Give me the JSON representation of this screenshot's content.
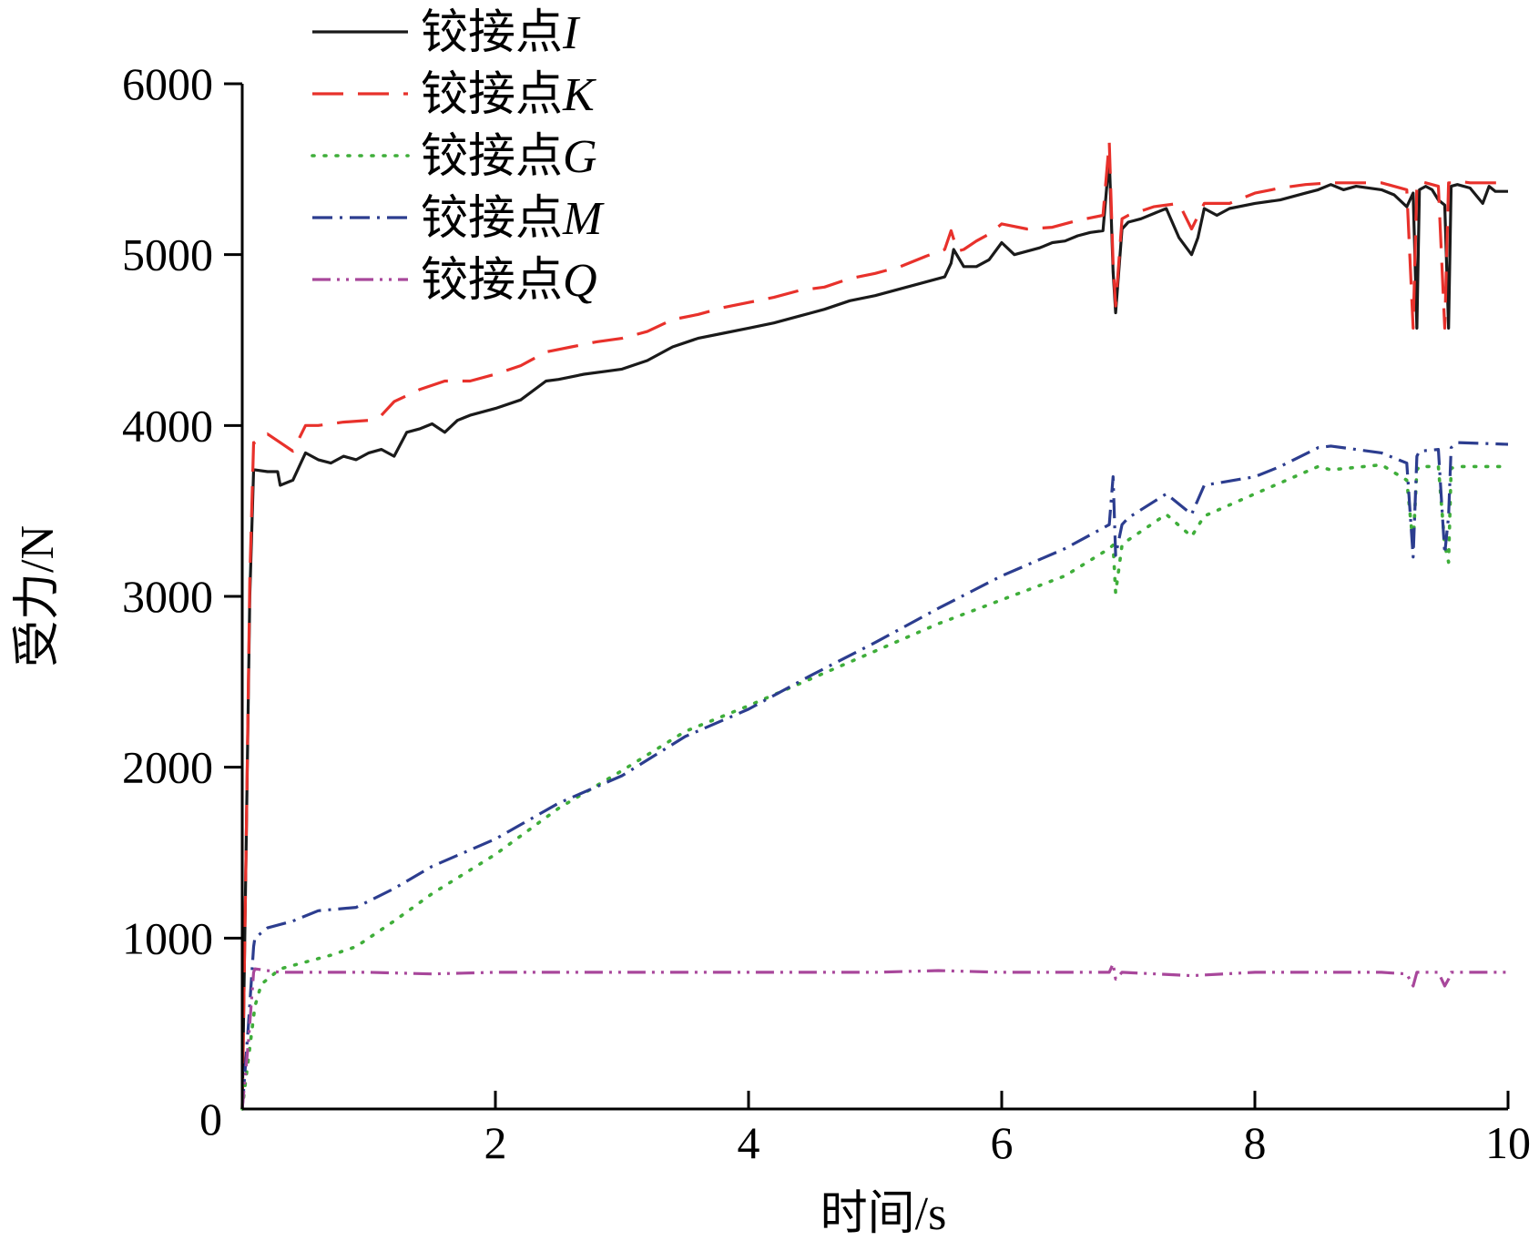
{
  "chart_data": {
    "type": "line",
    "xlabel": "时间/s",
    "ylabel": "受力/N",
    "xlim": [
      0,
      10
    ],
    "ylim": [
      0,
      6000
    ],
    "xticks": [
      2,
      4,
      6,
      8,
      10
    ],
    "yticks": [
      1000,
      2000,
      3000,
      4000,
      5000,
      6000
    ],
    "origin_label": "0",
    "grid": false,
    "legend_position": "top-left",
    "series": [
      {
        "name": "铰接点I",
        "name_prefix": "铰接点",
        "name_symbol": "I",
        "color": "#1a1a1a",
        "dash": "solid",
        "x": [
          0,
          0.03,
          0.06,
          0.09,
          0.1,
          0.2,
          0.28,
          0.3,
          0.4,
          0.5,
          0.6,
          0.7,
          0.8,
          0.9,
          1.0,
          1.1,
          1.2,
          1.3,
          1.4,
          1.5,
          1.6,
          1.7,
          1.8,
          2.0,
          2.2,
          2.4,
          2.5,
          2.7,
          2.9,
          3.0,
          3.2,
          3.4,
          3.6,
          3.8,
          4.0,
          4.2,
          4.4,
          4.6,
          4.8,
          5.0,
          5.2,
          5.4,
          5.55,
          5.6,
          5.62,
          5.7,
          5.8,
          5.9,
          6.0,
          6.1,
          6.2,
          6.3,
          6.4,
          6.5,
          6.6,
          6.7,
          6.8,
          6.85,
          6.88,
          6.9,
          6.95,
          7.0,
          7.1,
          7.2,
          7.3,
          7.4,
          7.5,
          7.55,
          7.6,
          7.7,
          7.8,
          8.0,
          8.2,
          8.4,
          8.5,
          8.6,
          8.7,
          8.8,
          9.0,
          9.1,
          9.2,
          9.25,
          9.28,
          9.3,
          9.35,
          9.4,
          9.45,
          9.5,
          9.53,
          9.55,
          9.6,
          9.7,
          9.8,
          9.85,
          9.9,
          10.0
        ],
        "y": [
          0,
          1500,
          3000,
          3740,
          3740,
          3730,
          3730,
          3650,
          3680,
          3840,
          3800,
          3780,
          3820,
          3800,
          3840,
          3860,
          3820,
          3960,
          3980,
          4010,
          3960,
          4030,
          4060,
          4100,
          4150,
          4260,
          4270,
          4300,
          4320,
          4330,
          4380,
          4460,
          4510,
          4540,
          4570,
          4600,
          4640,
          4680,
          4730,
          4760,
          4800,
          4840,
          4870,
          4950,
          5030,
          4930,
          4930,
          4970,
          5070,
          5000,
          5020,
          5040,
          5070,
          5080,
          5110,
          5130,
          5140,
          5570,
          4900,
          4660,
          5150,
          5190,
          5210,
          5240,
          5270,
          5100,
          5000,
          5100,
          5270,
          5230,
          5270,
          5300,
          5320,
          5360,
          5380,
          5410,
          5380,
          5400,
          5380,
          5350,
          5280,
          5360,
          4570,
          5380,
          5400,
          5380,
          5320,
          5290,
          4570,
          5400,
          5410,
          5390,
          5300,
          5400,
          5370,
          5370
        ]
      },
      {
        "name": "铰接点K",
        "name_prefix": "铰接点",
        "name_symbol": "K",
        "color": "#e8312b",
        "dash": "34,16",
        "x": [
          0,
          0.03,
          0.06,
          0.09,
          0.1,
          0.2,
          0.3,
          0.4,
          0.5,
          0.6,
          0.8,
          1.0,
          1.1,
          1.2,
          1.4,
          1.6,
          1.8,
          2.0,
          2.2,
          2.4,
          2.6,
          2.8,
          3.0,
          3.2,
          3.4,
          3.6,
          3.8,
          4.0,
          4.2,
          4.4,
          4.6,
          4.8,
          5.0,
          5.2,
          5.4,
          5.55,
          5.6,
          5.65,
          5.7,
          5.8,
          5.9,
          6.0,
          6.2,
          6.4,
          6.6,
          6.8,
          6.85,
          6.88,
          6.9,
          6.95,
          7.0,
          7.2,
          7.4,
          7.5,
          7.6,
          7.8,
          8.0,
          8.2,
          8.4,
          8.6,
          8.8,
          9.0,
          9.2,
          9.25,
          9.28,
          9.3,
          9.35,
          9.45,
          9.5,
          9.53,
          9.55,
          9.6,
          9.7,
          9.8,
          10.0
        ],
        "y": [
          0,
          1500,
          3100,
          3900,
          3900,
          3950,
          3900,
          3850,
          4000,
          4000,
          4020,
          4030,
          4060,
          4140,
          4210,
          4260,
          4260,
          4300,
          4350,
          4430,
          4460,
          4490,
          4510,
          4550,
          4620,
          4650,
          4690,
          4720,
          4750,
          4790,
          4810,
          4860,
          4890,
          4930,
          4990,
          5030,
          5140,
          5020,
          5030,
          5080,
          5120,
          5180,
          5150,
          5160,
          5200,
          5230,
          5660,
          4950,
          4700,
          5210,
          5230,
          5280,
          5300,
          5150,
          5300,
          5300,
          5360,
          5390,
          5410,
          5420,
          5420,
          5420,
          5380,
          4570,
          5410,
          5430,
          5420,
          5400,
          4570,
          5420,
          5420,
          5430,
          5420,
          5420,
          5420
        ]
      },
      {
        "name": "铰接点G",
        "name_prefix": "铰接点",
        "name_symbol": "G",
        "color": "#3fae3a",
        "dash": "2,11",
        "x": [
          0,
          0.05,
          0.1,
          0.15,
          0.3,
          0.5,
          0.7,
          0.9,
          1.2,
          1.5,
          2.0,
          2.5,
          3.0,
          3.5,
          4.0,
          4.5,
          5.0,
          5.5,
          6.0,
          6.5,
          6.85,
          6.88,
          6.9,
          6.95,
          7.0,
          7.3,
          7.5,
          7.6,
          8.0,
          8.5,
          8.6,
          9.0,
          9.2,
          9.25,
          9.28,
          9.3,
          9.45,
          9.5,
          9.53,
          9.55,
          9.6,
          10.0
        ],
        "y": [
          0,
          300,
          600,
          730,
          820,
          860,
          900,
          950,
          1100,
          1260,
          1490,
          1760,
          1980,
          2210,
          2360,
          2520,
          2680,
          2840,
          2980,
          3120,
          3280,
          3300,
          3020,
          3300,
          3330,
          3480,
          3350,
          3470,
          3600,
          3760,
          3740,
          3770,
          3680,
          3300,
          3740,
          3760,
          3760,
          3300,
          3200,
          3750,
          3760,
          3760
        ]
      },
      {
        "name": "铰接点M",
        "name_prefix": "铰接点",
        "name_symbol": "M",
        "color": "#2c3d8f",
        "dash": "22,8,3,8",
        "x": [
          0,
          0.05,
          0.09,
          0.1,
          0.2,
          0.4,
          0.6,
          0.9,
          1.2,
          1.5,
          2.0,
          2.5,
          3.0,
          3.5,
          4.0,
          4.5,
          5.0,
          5.5,
          6.0,
          6.5,
          6.85,
          6.88,
          6.9,
          6.95,
          7.0,
          7.3,
          7.5,
          7.6,
          8.0,
          8.2,
          8.5,
          8.6,
          9.0,
          9.2,
          9.25,
          9.28,
          9.3,
          9.45,
          9.5,
          9.53,
          9.55,
          9.6,
          10.0
        ],
        "y": [
          0,
          500,
          950,
          1000,
          1060,
          1100,
          1160,
          1180,
          1290,
          1420,
          1580,
          1790,
          1950,
          2180,
          2340,
          2540,
          2730,
          2930,
          3120,
          3280,
          3420,
          3700,
          3240,
          3420,
          3460,
          3600,
          3480,
          3650,
          3700,
          3760,
          3870,
          3880,
          3840,
          3780,
          3230,
          3820,
          3850,
          3860,
          3250,
          3470,
          3870,
          3900,
          3890
        ]
      },
      {
        "name": "铰接点Q",
        "name_prefix": "铰接点",
        "name_symbol": "Q",
        "color": "#a8479b",
        "dash": "20,7,3,7,3,7",
        "x": [
          0,
          0.05,
          0.09,
          0.1,
          0.3,
          1.0,
          1.5,
          2.0,
          3.0,
          4.0,
          5.0,
          5.5,
          6.0,
          6.5,
          6.85,
          6.88,
          6.9,
          6.95,
          7.5,
          8.0,
          8.5,
          9.0,
          9.2,
          9.25,
          9.28,
          9.3,
          9.45,
          9.5,
          9.53,
          9.55,
          9.6,
          10.0
        ],
        "y": [
          0,
          400,
          800,
          820,
          800,
          800,
          790,
          800,
          800,
          800,
          800,
          810,
          800,
          800,
          800,
          850,
          760,
          800,
          780,
          800,
          800,
          800,
          790,
          720,
          800,
          800,
          800,
          720,
          760,
          800,
          800,
          800
        ]
      }
    ]
  }
}
